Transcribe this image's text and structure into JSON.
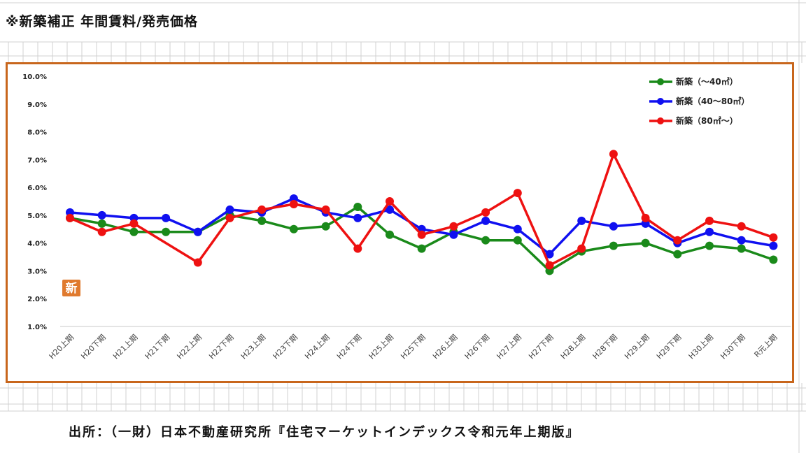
{
  "page": {
    "heading": "※新築補正 年間賃料/発売価格",
    "source": "出所：（一財）日本不動産研究所『住宅マーケットインデックス令和元年上期版』"
  },
  "chart_data": {
    "type": "line",
    "title": "",
    "xlabel": "",
    "ylabel": "",
    "categories": [
      "H20上期",
      "H20下期",
      "H21上期",
      "H21下期",
      "H22上期",
      "H22下期",
      "H23上期",
      "H23下期",
      "H24上期",
      "H24下期",
      "H25上期",
      "H25下期",
      "H26上期",
      "H26下期",
      "H27上期",
      "H27下期",
      "H28上期",
      "H28下期",
      "H29上期",
      "H29下期",
      "H30上期",
      "H30下期",
      "R元上期"
    ],
    "yticks": [
      "1.0%",
      "2.0%",
      "3.0%",
      "4.0%",
      "5.0%",
      "6.0%",
      "7.0%",
      "8.0%",
      "9.0%",
      "10.0%"
    ],
    "ylim": [
      1.0,
      10.0
    ],
    "grid": false,
    "legend_position": "top-right",
    "annotation": "新",
    "series": [
      {
        "name": "新築（～40㎡）",
        "color": "#1a8a1a",
        "values": [
          4.9,
          4.7,
          4.4,
          4.4,
          4.4,
          5.0,
          4.8,
          4.5,
          4.6,
          5.3,
          4.3,
          3.8,
          4.4,
          4.1,
          4.1,
          3.0,
          3.7,
          3.9,
          4.0,
          3.6,
          3.9,
          3.8,
          3.4
        ]
      },
      {
        "name": "新築（40～80㎡）",
        "color": "#1010f0",
        "values": [
          5.1,
          5.0,
          4.9,
          4.9,
          4.4,
          5.2,
          5.1,
          5.6,
          5.1,
          4.9,
          5.2,
          4.5,
          4.3,
          4.8,
          4.5,
          3.6,
          4.8,
          4.6,
          4.7,
          4.0,
          4.4,
          4.1,
          3.9
        ]
      },
      {
        "name": "新築（80㎡～）",
        "color": "#ee1111",
        "values": [
          4.9,
          4.4,
          4.7,
          null,
          3.3,
          4.9,
          5.2,
          5.4,
          5.2,
          3.8,
          5.5,
          4.3,
          4.6,
          5.1,
          5.8,
          3.2,
          3.8,
          7.2,
          4.9,
          4.1,
          4.8,
          4.6,
          4.2
        ]
      }
    ]
  }
}
